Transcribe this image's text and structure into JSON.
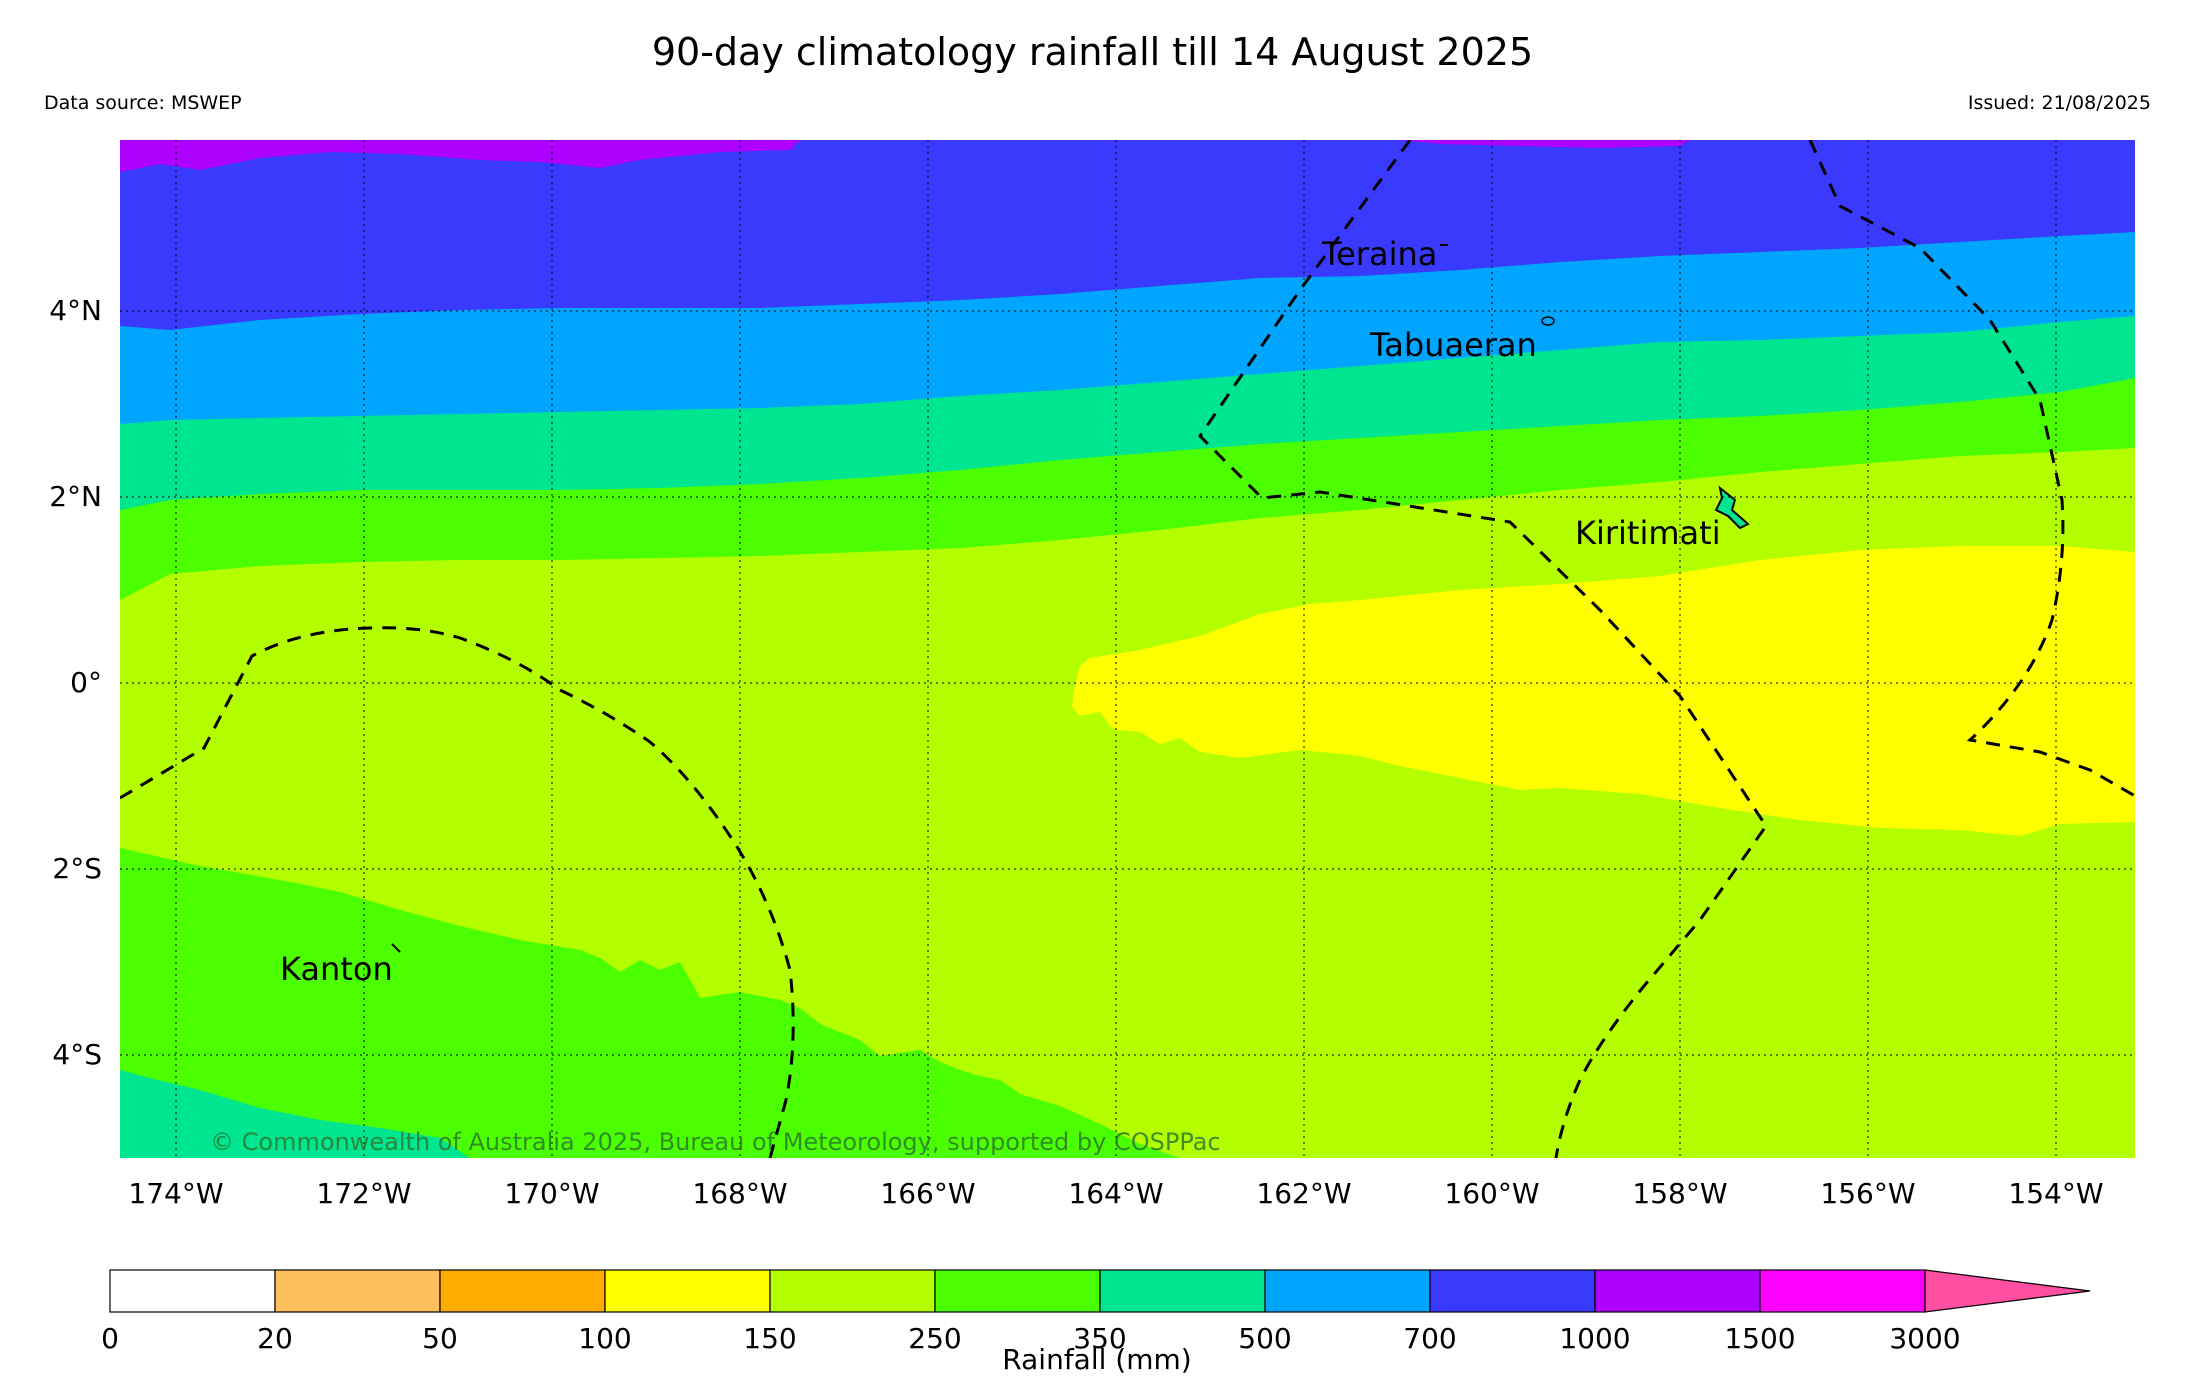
{
  "title": "90-day climatology rainfall till 14 August 2025",
  "data_source": "Data source: MSWEP",
  "issued": "Issued: 21/08/2025",
  "copyright": "© Commonwealth of Australia 2025, Bureau of Meteorology, supported by COSPPac",
  "lon_ticks": [
    "174°W",
    "172°W",
    "170°W",
    "168°W",
    "166°W",
    "164°W",
    "162°W",
    "160°W",
    "158°W",
    "156°W",
    "154°W"
  ],
  "lat_ticks": [
    "4°N",
    "2°N",
    "0°",
    "2°S",
    "4°S"
  ],
  "places": {
    "teraina": "Teraina",
    "tabuaeran": "Tabuaeran",
    "kiritimati": "Kiritimati",
    "kanton": "Kanton"
  },
  "colorbar": {
    "label": "Rainfall (mm)",
    "bounds": [
      "0",
      "20",
      "50",
      "100",
      "150",
      "250",
      "350",
      "500",
      "700",
      "1000",
      "1500",
      "3000"
    ],
    "colors": [
      "#ffffff",
      "#ffbf5c",
      "#ffac00",
      "#ffff00",
      "#b3ff00",
      "#4cff00",
      "#00e58f",
      "#00a5ff",
      "#3a3aff",
      "#ad00ff",
      "#ff00ff",
      "#ff4fa0"
    ]
  }
}
